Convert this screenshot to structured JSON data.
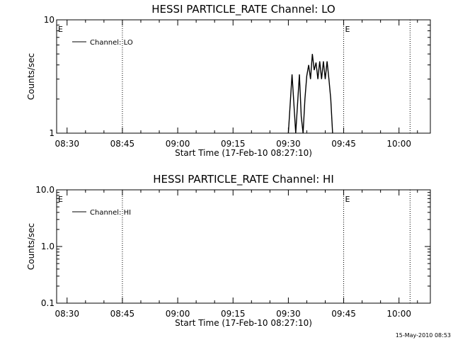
{
  "chart_data": [
    {
      "type": "line",
      "title": "HESSI PARTICLE_RATE Channel: LO",
      "xlabel": "Start Time (17-Feb-10 08:27:10)",
      "ylabel": "Counts/sec",
      "x_ticks": [
        "08:30",
        "08:45",
        "09:00",
        "09:15",
        "09:30",
        "09:45",
        "10:00"
      ],
      "y_scale": "log",
      "ylim": [
        1,
        10
      ],
      "y_ticks": [
        "1",
        "10"
      ],
      "xlim": [
        "08:27:10",
        "10:08:30"
      ],
      "grid": false,
      "legend_position": "top-left",
      "series": [
        {
          "name": "Channel: LO",
          "x": [
            "09:30:00",
            "09:31:00",
            "09:32:00",
            "09:33:00",
            "09:33:30",
            "09:34:00",
            "09:34:30",
            "09:35:00",
            "09:35:30",
            "09:36:00",
            "09:36:30",
            "09:37:00",
            "09:37:30",
            "09:38:00",
            "09:38:30",
            "09:39:00",
            "09:39:30",
            "09:40:00",
            "09:40:30",
            "09:41:00",
            "09:41:30",
            "09:42:00"
          ],
          "values": [
            1.0,
            3.3,
            1.0,
            3.3,
            1.4,
            1.0,
            2.0,
            3.2,
            4.0,
            3.0,
            5.0,
            3.6,
            4.2,
            3.0,
            4.3,
            3.0,
            4.3,
            3.0,
            4.3,
            3.0,
            2.0,
            1.0
          ]
        }
      ],
      "event_lines": [
        "08:45:00",
        "09:45:00",
        "10:03:00"
      ],
      "event_labels": [
        {
          "text": "E",
          "at": "08:27:10"
        },
        {
          "text": "E",
          "at": "09:45:00"
        }
      ]
    },
    {
      "type": "line",
      "title": "HESSI PARTICLE_RATE Channel: HI",
      "xlabel": "Start Time (17-Feb-10 08:27:10)",
      "ylabel": "Counts/sec",
      "x_ticks": [
        "08:30",
        "08:45",
        "09:00",
        "09:15",
        "09:30",
        "09:45",
        "10:00"
      ],
      "y_scale": "log",
      "ylim": [
        0.1,
        10
      ],
      "y_ticks": [
        "0.1",
        "1.0",
        "10.0"
      ],
      "xlim": [
        "08:27:10",
        "10:08:30"
      ],
      "grid": false,
      "legend_position": "top-left",
      "series": [
        {
          "name": "Channel: HI",
          "x": [],
          "values": []
        }
      ],
      "event_lines": [
        "08:45:00",
        "09:45:00",
        "10:03:00"
      ],
      "event_labels": [
        {
          "text": "E",
          "at": "08:27:10"
        },
        {
          "text": "E",
          "at": "09:45:00"
        }
      ]
    }
  ],
  "footer": "15-May-2010 08:53"
}
